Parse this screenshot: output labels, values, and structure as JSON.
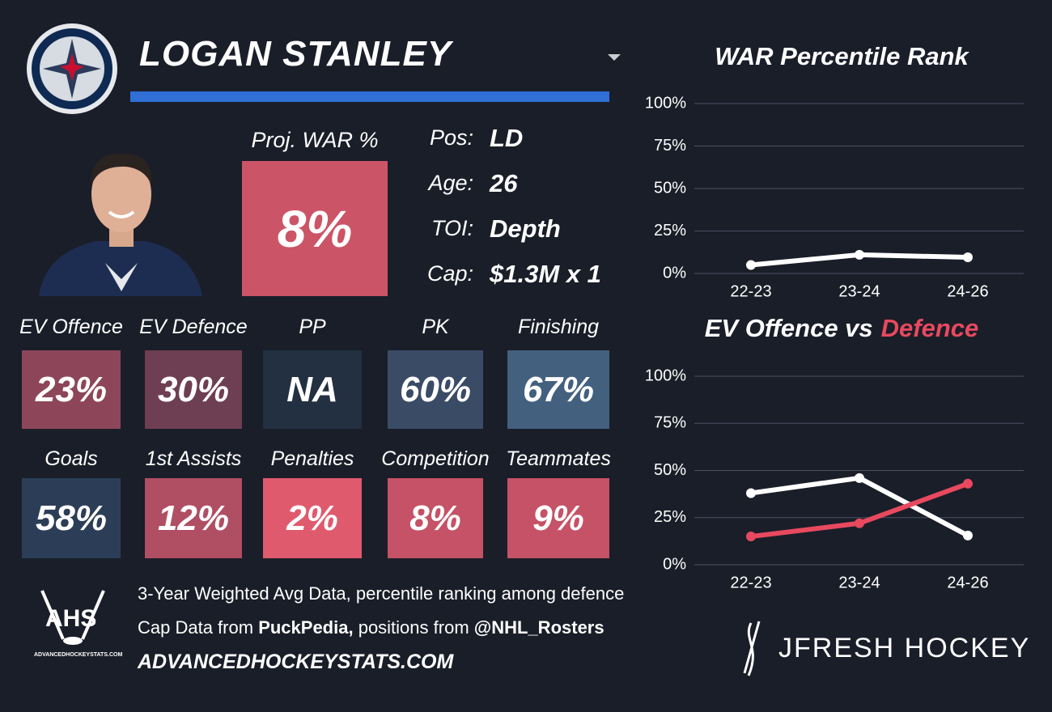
{
  "header": {
    "name": "LOGAN STANLEY"
  },
  "projection": {
    "label": "Proj. WAR %",
    "value": "8%",
    "color": "#cc5467"
  },
  "info": [
    {
      "label": "Pos:",
      "value": "LD"
    },
    {
      "label": "Age:",
      "value": "26"
    },
    {
      "label": "TOI:",
      "value": "Depth"
    },
    {
      "label": "Cap:",
      "value": "$1.3M x 1"
    }
  ],
  "tiles": [
    {
      "label": "EV Offence",
      "value": "23%",
      "color": "#8d4659"
    },
    {
      "label": "EV Defence",
      "value": "30%",
      "color": "#6e3e52"
    },
    {
      "label": "PP",
      "value": "NA",
      "color": "#223041"
    },
    {
      "label": "PK",
      "value": "60%",
      "color": "#3a4b66"
    },
    {
      "label": "Finishing",
      "value": "67%",
      "color": "#43607f"
    },
    {
      "label": "Goals",
      "value": "58%",
      "color": "#2c3e57"
    },
    {
      "label": "1st Assists",
      "value": "12%",
      "color": "#b04e63"
    },
    {
      "label": "Penalties",
      "value": "2%",
      "color": "#e05a6e"
    },
    {
      "label": "Competition",
      "value": "8%",
      "color": "#c55266"
    },
    {
      "label": "Teammates",
      "value": "9%",
      "color": "#c55266"
    }
  ],
  "footer": {
    "line1": "3-Year Weighted Avg Data, percentile ranking among defence",
    "line2": {
      "a": "Cap Data from",
      "b": "PuckPedia,",
      "c": "positions from",
      "d": "@NHL_Rosters"
    },
    "site": "ADVANCEDHOCKEYSTATS.COM",
    "ahs_logo": "AHS",
    "ahs_logo_sub": "ADVANCEDHOCKEYSTATS.COM",
    "brand": "JFRESH HOCKEY"
  },
  "chart_data": [
    {
      "type": "line",
      "title_parts": [
        {
          "text": "WAR Percentile Rank",
          "color": "#ffffff"
        }
      ],
      "categories": [
        "22-23",
        "23-24",
        "24-26"
      ],
      "series": [
        {
          "color": "#ffffff",
          "values": [
            5,
            11,
            9.5
          ]
        }
      ],
      "ylim": [
        0,
        100
      ],
      "yticks": [
        {
          "value": 0,
          "label": "0%"
        },
        {
          "value": 25,
          "label": "25%"
        },
        {
          "value": 50,
          "label": "50%"
        },
        {
          "value": 75,
          "label": "75%"
        },
        {
          "value": 100,
          "label": "100%"
        }
      ],
      "grid": true
    },
    {
      "type": "line",
      "title_parts": [
        {
          "text": "EV Offence vs",
          "color": "#ffffff"
        },
        {
          "text": "Defence",
          "color": "#e8495f"
        }
      ],
      "categories": [
        "22-23",
        "23-24",
        "24-26"
      ],
      "series": [
        {
          "color": "#ffffff",
          "values": [
            38,
            46,
            15.5
          ]
        },
        {
          "color": "#e8495f",
          "values": [
            15,
            22,
            43
          ]
        }
      ],
      "ylim": [
        0,
        100
      ],
      "yticks": [
        {
          "value": 0,
          "label": "0%"
        },
        {
          "value": 25,
          "label": "25%"
        },
        {
          "value": 50,
          "label": "50%"
        },
        {
          "value": 75,
          "label": "75%"
        },
        {
          "value": 100,
          "label": "100%"
        }
      ],
      "grid": true
    }
  ]
}
